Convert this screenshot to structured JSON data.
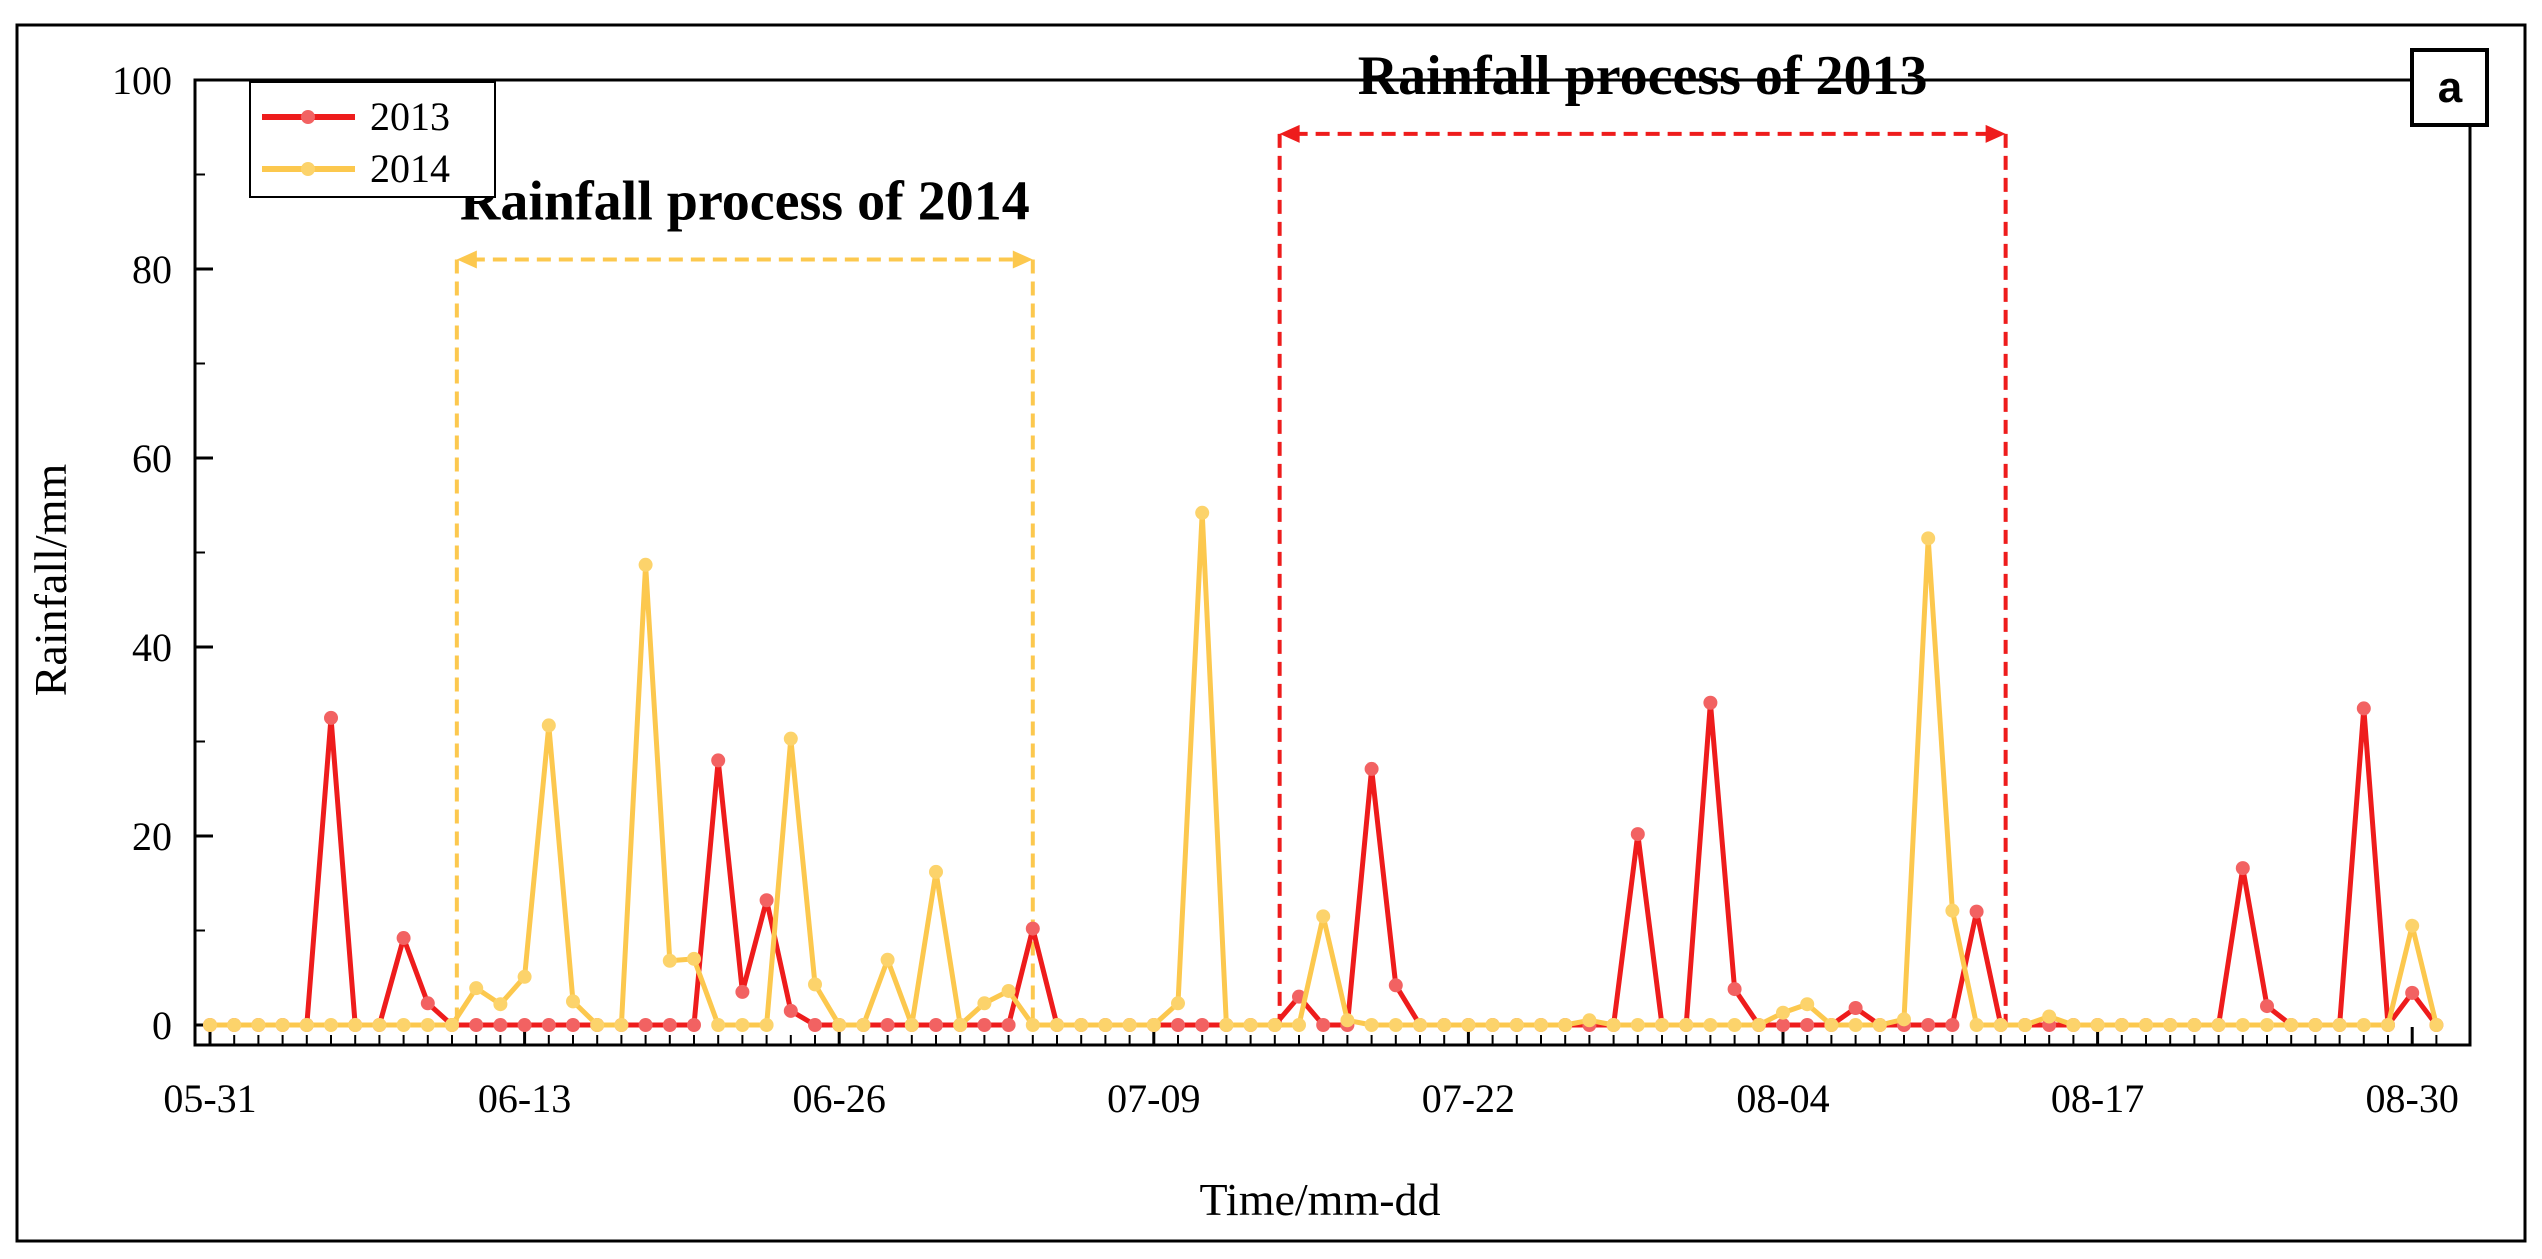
{
  "chart_data": {
    "type": "line",
    "panel_label": "a",
    "title": "",
    "xlabel": "Time/mm-dd",
    "ylabel": "Rainfall/mm",
    "ylim": [
      0,
      100
    ],
    "yticks": [
      0,
      20,
      40,
      60,
      80,
      100
    ],
    "x_start_date": "05-31",
    "xticks": [
      {
        "day": 0,
        "label": "05-31"
      },
      {
        "day": 13,
        "label": "06-13"
      },
      {
        "day": 26,
        "label": "06-26"
      },
      {
        "day": 39,
        "label": "07-09"
      },
      {
        "day": 52,
        "label": "07-22"
      },
      {
        "day": 65,
        "label": "08-04"
      },
      {
        "day": 78,
        "label": "08-17"
      },
      {
        "day": 91,
        "label": "08-30"
      }
    ],
    "series": [
      {
        "name": "2013",
        "color": "#ee1c1c",
        "marker_color": "#f26262",
        "values": [
          0,
          0,
          0,
          0,
          0,
          32.5,
          0,
          0,
          9.2,
          2.3,
          0,
          0,
          0,
          0,
          0,
          0,
          0,
          0,
          0,
          0,
          0,
          0,
          0,
          0,
          0,
          0,
          0,
          0,
          0,
          0,
          0,
          0,
          0,
          0,
          0,
          0,
          0,
          0,
          0,
          0,
          0,
          0,
          0,
          0,
          0,
          0,
          0,
          0,
          0,
          0,
          0,
          0,
          0,
          0,
          0,
          0,
          0,
          0,
          0,
          0,
          0,
          0,
          0,
          0,
          0,
          0,
          0,
          0,
          0,
          0,
          0,
          0,
          0,
          0,
          0,
          0,
          0,
          0,
          0,
          0,
          0,
          0,
          0,
          0,
          0,
          0,
          0,
          0,
          0,
          0,
          0,
          0,
          0
        ],
        "overrides": {
          "21": 28.0,
          "22": 3.5,
          "23": 13.2,
          "24": 1.5,
          "34": 10.2,
          "45": 3.0,
          "46": 0.0,
          "48": 27.1,
          "49": 4.2,
          "59": 20.2,
          "62": 34.1,
          "63": 3.8,
          "68": 1.8,
          "73": 12.0,
          "84": 16.6,
          "85": 2.0,
          "89": 33.5,
          "91": 3.4
        }
      },
      {
        "name": "2014",
        "color": "#fcc84e",
        "marker_color": "#fcd36b",
        "values": [
          0,
          0,
          0,
          0,
          0,
          0,
          0,
          0,
          0,
          0,
          0,
          0,
          0,
          0,
          0,
          0,
          0,
          0,
          0,
          0,
          0,
          0,
          0,
          0,
          0,
          0,
          0,
          0,
          0,
          0,
          0,
          0,
          0,
          0,
          0,
          0,
          0,
          0,
          0,
          0,
          0,
          0,
          0,
          0,
          0,
          0,
          0,
          0,
          0,
          0,
          0,
          0,
          0,
          0,
          0,
          0,
          0,
          0,
          0,
          0,
          0,
          0,
          0,
          0,
          0,
          0,
          0,
          0,
          0,
          0,
          0,
          0,
          0,
          0,
          0,
          0,
          0,
          0,
          0,
          0,
          0,
          0,
          0,
          0,
          0,
          0,
          0,
          0,
          0,
          0,
          0,
          0,
          0
        ],
        "overrides": {
          "11": 3.9,
          "12": 2.2,
          "13": 5.1,
          "14": 31.7,
          "15": 2.5,
          "18": 48.7,
          "19": 6.8,
          "20": 7.0,
          "24": 30.3,
          "25": 4.3,
          "28": 6.9,
          "30": 16.2,
          "32": 2.3,
          "33": 3.6,
          "40": 2.3,
          "41": 54.2,
          "46": 11.5,
          "47": 0.5,
          "57": 0.5,
          "65": 1.3,
          "66": 2.2,
          "70": 0.6,
          "71": 51.5,
          "72": 12.1,
          "76": 0.9,
          "91": 10.5
        }
      }
    ],
    "legend": {
      "position": "top-left",
      "entries": [
        "2013",
        "2014"
      ]
    },
    "annotations": [
      {
        "text": "Rainfall process of 2014",
        "color": "#fcc84e",
        "start_day": 10.2,
        "end_day": 34,
        "bracket_y": 81
      },
      {
        "text": "Rainfall process of 2013",
        "color": "#ee1c1c",
        "start_day": 44.2,
        "end_day": 74.2,
        "bracket_y": 94.3
      }
    ]
  }
}
